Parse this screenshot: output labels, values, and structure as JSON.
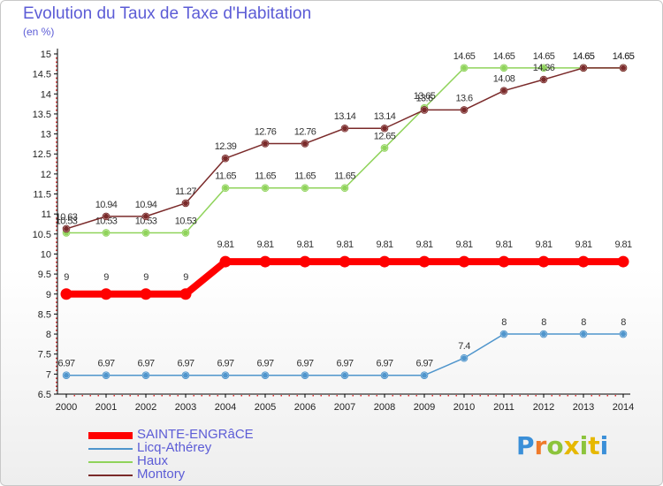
{
  "title": "Evolution du Taux de Taxe d'Habitation",
  "unit": "(en %)",
  "logo": "Proxiti",
  "chart_data": {
    "type": "line",
    "title": "Evolution du Taux de Taxe d'Habitation",
    "ylabel": "(en %)",
    "xlabel": "",
    "ylim": [
      6.5,
      15
    ],
    "yticks": [
      "6.5",
      "7",
      "7.5",
      "8",
      "8.5",
      "9",
      "9.5",
      "10",
      "10.5",
      "11",
      "11.5",
      "12",
      "12.5",
      "13",
      "13.5",
      "14",
      "14.5",
      "15"
    ],
    "x": [
      "2000",
      "2001",
      "2002",
      "2003",
      "2004",
      "2005",
      "2006",
      "2007",
      "2008",
      "2009",
      "2010",
      "2011",
      "2012",
      "2013",
      "2014"
    ],
    "grid": false,
    "legend_position": "bottom-left",
    "series": [
      {
        "name": "SAINTE-ENGRâCE",
        "color": "#ff0000",
        "values": [
          9,
          9,
          9,
          9,
          9.81,
          9.81,
          9.81,
          9.81,
          9.81,
          9.81,
          9.81,
          9.81,
          9.81,
          9.81,
          9.81
        ],
        "labels": [
          "9",
          "9",
          "9",
          "9",
          "9.81",
          "9.81",
          "9.81",
          "9.81",
          "9.81",
          "9.81",
          "9.81",
          "9.81",
          "9.81",
          "9.81",
          "9.81"
        ]
      },
      {
        "name": "Licq-Athérey",
        "color": "#4f95cc",
        "values": [
          6.97,
          6.97,
          6.97,
          6.97,
          6.97,
          6.97,
          6.97,
          6.97,
          6.97,
          6.97,
          7.4,
          8,
          8,
          8,
          8
        ],
        "labels": [
          "6.97",
          "6.97",
          "6.97",
          "6.97",
          "6.97",
          "6.97",
          "6.97",
          "6.97",
          "6.97",
          "6.97",
          "7.4",
          "8",
          "8",
          "8",
          "8"
        ]
      },
      {
        "name": "Haux",
        "color": "#8fd35a",
        "values": [
          10.53,
          10.53,
          10.53,
          10.53,
          11.65,
          11.65,
          11.65,
          11.65,
          12.65,
          13.65,
          14.65,
          14.65,
          14.65,
          14.65,
          14.65
        ],
        "labels": [
          "10.53",
          "10.53",
          "10.53",
          "10.53",
          "11.65",
          "11.65",
          "11.65",
          "11.65",
          "12.65",
          "13.65",
          "14.65",
          "14.65",
          "14.65",
          "14.65",
          "14.65"
        ]
      },
      {
        "name": "Montory",
        "color": "#7a2a2a",
        "values": [
          10.63,
          10.94,
          10.94,
          11.27,
          12.39,
          12.76,
          12.76,
          13.14,
          13.14,
          13.6,
          13.6,
          14.08,
          14.36,
          14.65,
          14.65
        ],
        "labels": [
          "10.63",
          "10.94",
          "10.94",
          "11.27",
          "12.39",
          "12.76",
          "12.76",
          "13.14",
          "13.14",
          "13.6",
          "13.6",
          "14.08",
          "14.36",
          "14.65",
          "14.65"
        ]
      }
    ]
  }
}
